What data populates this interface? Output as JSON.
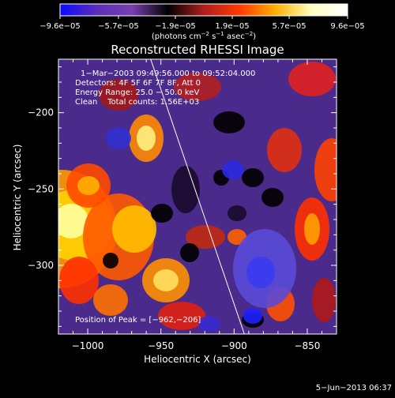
{
  "chart_data": {
    "type": "heatmap",
    "title": "Reconstructed RHESSI Image",
    "xlabel": "Heliocentric X (arcsec)",
    "ylabel": "Heliocentric Y (arcsec)",
    "xlim": [
      -1020,
      -830
    ],
    "ylim": [
      -345,
      -165
    ],
    "x_ticks": [
      -1000,
      -950,
      -900,
      -850
    ],
    "x_tick_labels": [
      "−1000",
      "−950",
      "−900",
      "−850"
    ],
    "y_ticks": [
      -200,
      -250,
      -300
    ],
    "y_tick_labels": [
      "−200",
      "−250",
      "−300"
    ],
    "colorbar": {
      "min": -9.6e-05,
      "max": 9.6e-05,
      "ticks": [
        -9.6e-05,
        -5.7e-05,
        -1.9e-05,
        1.9e-05,
        5.7e-05,
        9.6e-05
      ],
      "tick_labels": [
        "−9.6e−05",
        "−5.7e−05",
        "−1.9e−05",
        "1.9e−05",
        "5.7e−05",
        "9.6e−05"
      ],
      "unit_label": {
        "open": "(photons cm",
        "sup1": "−2",
        "mid": " s",
        "sup2": "−1",
        "mid2": " asec",
        "sup3": "−2",
        "close": ")"
      },
      "colors": [
        "#0a0aff",
        "#5a2db8",
        "#7a3fb0",
        "#000000",
        "#b01e1e",
        "#ff3a00",
        "#ffb000",
        "#ffffc0",
        "#ffffff"
      ]
    },
    "annotations": [
      "1−Mar−2003 09:49:56.000 to 09:52:04.000",
      "Detectors: 4F 5F 6F 7F 8F, Att 0",
      "Energy Range: 25.0 − 50.0 keV",
      "Clean    Total counts: 1.56E+03"
    ],
    "peak_label": "Position of Peak = [−962,−206]",
    "peak_position": [
      -962,
      -206
    ],
    "limb_line": [
      [
        -957,
        -165
      ],
      [
        -893,
        -345
      ]
    ]
  },
  "footer": {
    "date": "5−Jun−2013 06:37"
  }
}
